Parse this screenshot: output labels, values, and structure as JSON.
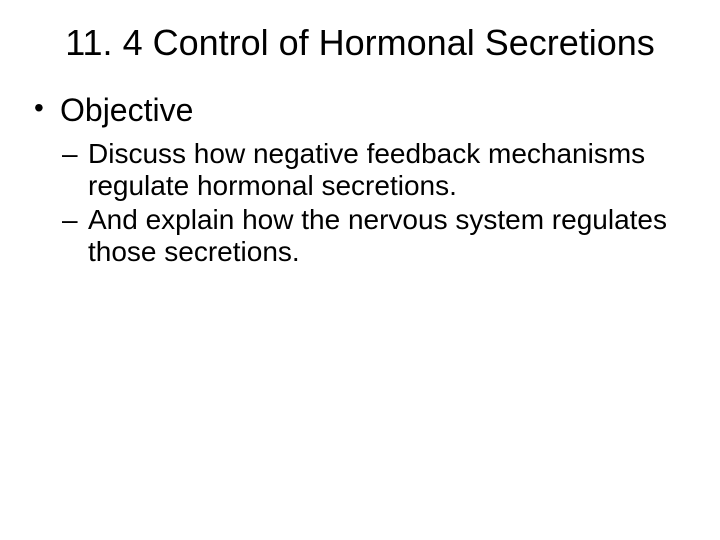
{
  "slide": {
    "background_color": "#ffffff",
    "text_color": "#000000",
    "font_family": "Arial",
    "title": {
      "text": "11. 4 Control of Hormonal Secretions",
      "fontsize": 36,
      "align": "center"
    },
    "bullets": {
      "level1": [
        {
          "text": "Objective"
        }
      ],
      "level2": [
        {
          "text": "Discuss how negative feedback mechanisms regulate hormonal secretions."
        },
        {
          "text": "And explain how the nervous system regulates those secretions."
        }
      ],
      "level1_fontsize": 32,
      "level2_fontsize": 28,
      "level1_marker": "•",
      "level2_marker": "–"
    }
  }
}
